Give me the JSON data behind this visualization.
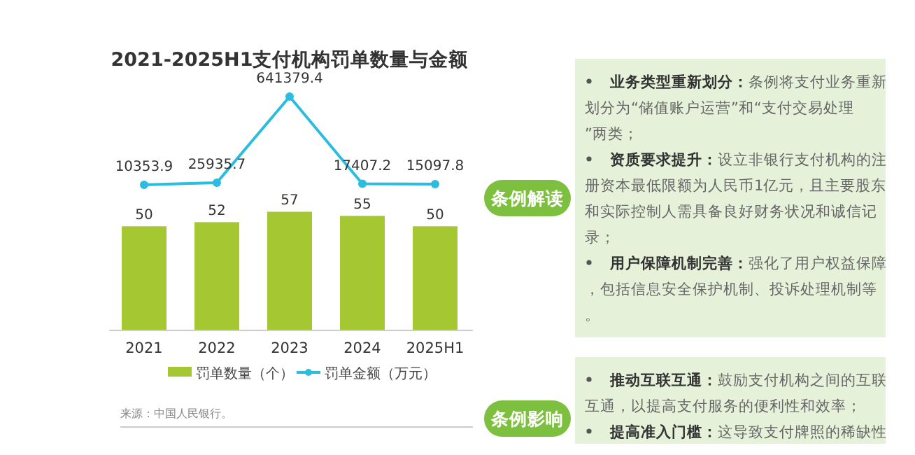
{
  "chart_data": [
    {
      "type": "bar",
      "categories": [
        "2021",
        "2022",
        "2023",
        "2024",
        "2025H1"
      ],
      "series": [
        {
          "name": "罚单数量（个）",
          "type": "bar",
          "color": "#a5c832",
          "values": [
            50,
            52,
            57,
            55,
            50
          ]
        }
      ],
      "data_labels": true,
      "legend": "bottom",
      "annotations": [
        "来源：中国人民银行。"
      ]
    },
    {
      "type": "line",
      "title": "2021-2025H1支付机构罚单数量与金额",
      "categories": [
        null,
        null,
        null,
        null,
        null
      ],
      "series": [
        {
          "name": "罚单金额（万元）",
          "marker": "circle",
          "color": "#2bbde0",
          "values": [
            10353.9,
            25935.7,
            641379.4,
            17407.2,
            15097.8
          ]
        }
      ],
      "data_labels": true,
      "legend": "bottom"
    },
    {
      "type": "other",
      "title": "条例解读",
      "annotations": [
        "业务类型重新划分：条例将支付业务重新划分为“储值账户运营”和“支付交易处理”两类；",
        "资质要求提升：设立非银行支付机构的注册资本最低限额为人民币1亿元，且主要股东和实际控制人需具备良好财务状况和诚信记录；",
        "用户保障机制完善：强化了用户权益保障，包括信息安全保护机制、投诉处理机制等。"
      ]
    },
    {
      "type": "other",
      "title": "条例影响",
      "annotations": [
        "推动互联互通：鼓励支付机构之间的互联互通，以提高支付服务的便利性和效率；",
        "提高准入门槛：这导致支付牌照的稀缺性增加，从而提升了牌照的市场价值。"
      ]
    }
  ]
}
